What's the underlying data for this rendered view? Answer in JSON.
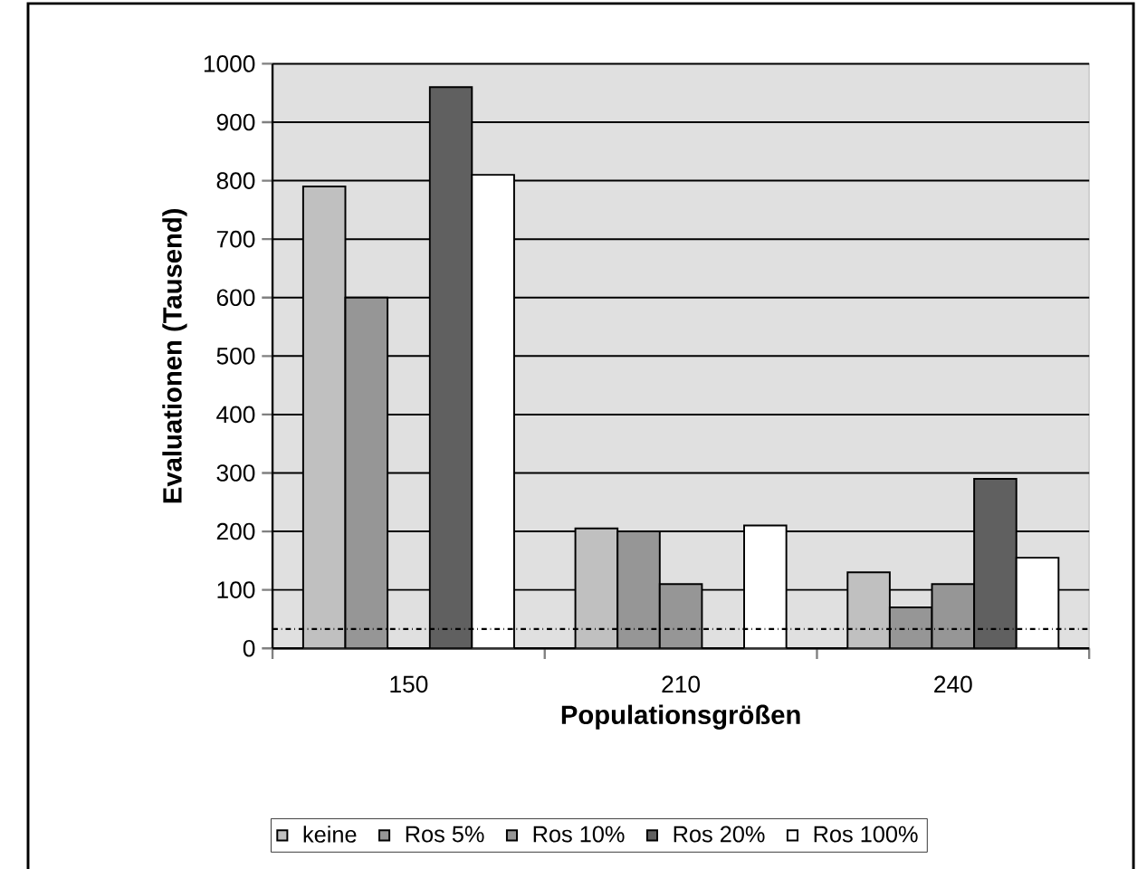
{
  "chart_data": {
    "type": "bar",
    "xlabel": "Populationsgrößen",
    "ylabel": "Evaluationen (Tausend)",
    "categories": [
      "150",
      "210",
      "240"
    ],
    "series": [
      {
        "name": "keine",
        "color": "#c0c0c0",
        "values": [
          790,
          205,
          130
        ]
      },
      {
        "name": "Ros 5%",
        "color": "#969696",
        "values": [
          600,
          200,
          70
        ]
      },
      {
        "name": "Ros 10%",
        "color": "#969696",
        "values": [
          null,
          110,
          110
        ]
      },
      {
        "name": "Ros 20%",
        "color": "#606060",
        "values": [
          960,
          null,
          290
        ]
      },
      {
        "name": "Ros 100%",
        "color": "#ffffff",
        "values": [
          810,
          210,
          155
        ]
      }
    ],
    "ylim": [
      0,
      1000
    ],
    "yticks": [
      0,
      100,
      200,
      300,
      400,
      500,
      600,
      700,
      800,
      900,
      1000
    ],
    "grid": "y",
    "legend": "bottom",
    "ref_lines": [
      {
        "axis": "y",
        "value": 33,
        "line_style": "dashdot",
        "color": "#000000"
      }
    ]
  }
}
